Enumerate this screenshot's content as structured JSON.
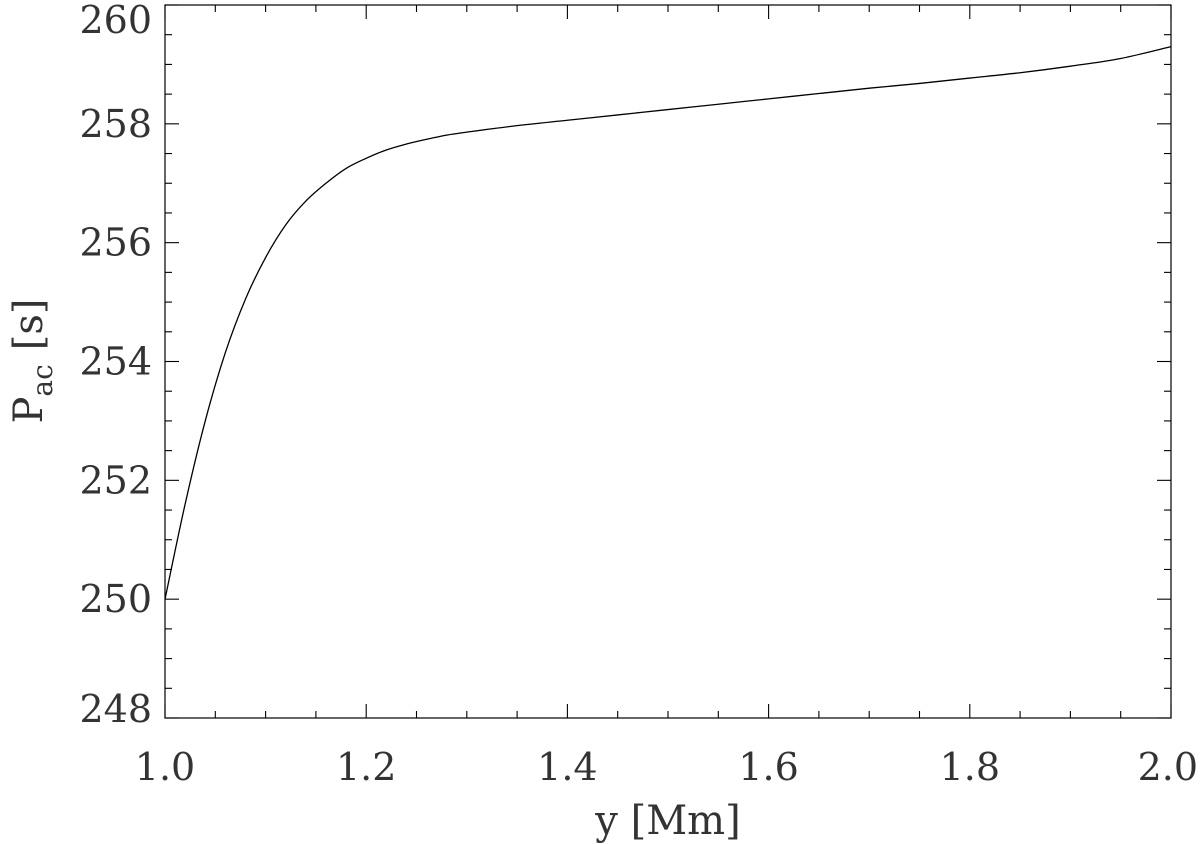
{
  "chart_data": {
    "type": "line",
    "xlabel": "y [Mm]",
    "ylabel": {
      "main": "P",
      "subscript": "ac",
      "unit": "[s]"
    },
    "xlim": [
      1.0,
      2.0
    ],
    "ylim": [
      248,
      260
    ],
    "x_ticks": [
      "1.0",
      "1.2",
      "1.4",
      "1.6",
      "1.8",
      "2.0"
    ],
    "y_ticks": [
      "248",
      "250",
      "252",
      "254",
      "256",
      "258",
      "260"
    ],
    "x_minor_step": 0.05,
    "y_minor_step": 0.5,
    "grid": false,
    "series": [
      {
        "x": [
          1.0,
          1.02,
          1.04,
          1.06,
          1.08,
          1.1,
          1.12,
          1.14,
          1.16,
          1.18,
          1.2,
          1.22,
          1.24,
          1.26,
          1.28,
          1.3,
          1.35,
          1.4,
          1.45,
          1.5,
          1.55,
          1.6,
          1.65,
          1.7,
          1.75,
          1.8,
          1.85,
          1.9,
          1.95,
          2.0
        ],
        "y": [
          250.0,
          251.6,
          253.0,
          254.15,
          255.05,
          255.75,
          256.3,
          256.7,
          257.0,
          257.25,
          257.42,
          257.56,
          257.66,
          257.74,
          257.81,
          257.86,
          257.97,
          258.06,
          258.15,
          258.24,
          258.33,
          258.42,
          258.51,
          258.6,
          258.68,
          258.77,
          258.86,
          258.97,
          259.1,
          259.3
        ]
      }
    ]
  }
}
